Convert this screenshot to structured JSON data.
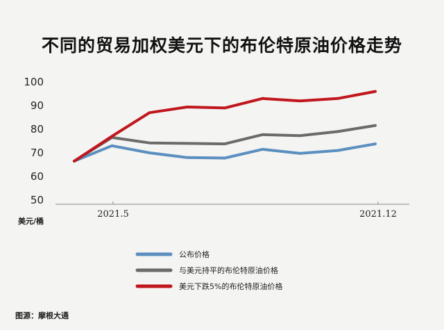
{
  "chart_data": {
    "type": "line",
    "title": "不同的贸易加权美元下的布伦特原油价格走势",
    "ylabel": "美元/桶",
    "ylim": [
      50,
      100
    ],
    "yticks": [
      50,
      60,
      70,
      80,
      90,
      100
    ],
    "xtick_labels": [
      "2021.5",
      "2021.12"
    ],
    "x": [
      0,
      1,
      2,
      3,
      4,
      5,
      6,
      7,
      8
    ],
    "series": [
      {
        "name": "公布价格",
        "color": "#5b8fc0",
        "values": [
          66.5,
          73.0,
          70.0,
          68.0,
          67.8,
          71.5,
          69.8,
          71.0,
          73.8
        ]
      },
      {
        "name": "与美元持平的布伦特原油价格",
        "color": "#6b6b6b",
        "values": [
          66.5,
          76.5,
          74.2,
          74.0,
          73.8,
          77.7,
          77.3,
          79.0,
          81.6
        ]
      },
      {
        "name": "美元下跌5%的布伦特原油价格",
        "color": "#c0161d",
        "values": [
          66.5,
          77.0,
          87.0,
          89.4,
          89.0,
          93.0,
          92.0,
          93.0,
          96.0
        ]
      }
    ],
    "grid": false,
    "legend_position": "bottom-center",
    "source": "图源：摩根大通"
  }
}
